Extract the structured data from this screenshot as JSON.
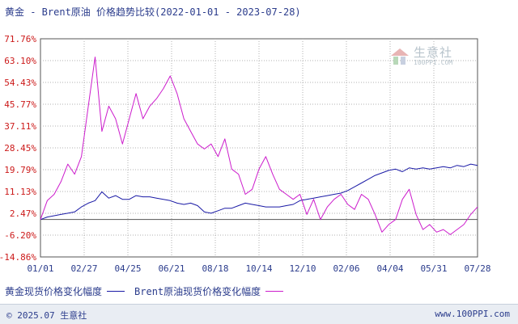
{
  "title": "黄金 - Brent原油 价格趋势比较(2022-01-01 - 2023-07-28)",
  "footer": {
    "copyright": "© 2025.07 生意社",
    "site": "www.100PPI.com"
  },
  "watermark": {
    "name": "生意社",
    "url": "100PPI.COM"
  },
  "colors": {
    "gold": "#1a1aa6",
    "brent": "#cc1ccc",
    "axis": "#333333",
    "grid": "#b0b0b0"
  },
  "chart_data": {
    "type": "line",
    "title": "黄金 - Brent原油 价格趋势比较(2022-01-01 - 2023-07-28)",
    "xlabel": "",
    "ylabel": "",
    "y_tick_labels": [
      "71.76%",
      "63.10%",
      "54.43%",
      "45.77%",
      "37.11%",
      "28.45%",
      "19.79%",
      "11.13%",
      "2.47%",
      "-6.20%",
      "-14.86%"
    ],
    "x_tick_labels": [
      "01/01",
      "02/27",
      "04/25",
      "06/21",
      "08/18",
      "10/14",
      "12/10",
      "02/06",
      "04/04",
      "05/31",
      "07/28"
    ],
    "ylim": [
      -14.86,
      71.76
    ],
    "grid": true,
    "legend_position": "bottom",
    "series": [
      {
        "name": "黄金现货价格变化幅度",
        "color": "#1a1aa6",
        "values": [
          0.0,
          1.0,
          1.5,
          2.0,
          2.5,
          3.0,
          5.0,
          6.5,
          7.5,
          11.0,
          8.5,
          9.5,
          8.0,
          8.0,
          9.5,
          9.0,
          9.0,
          8.5,
          8.0,
          7.5,
          6.5,
          6.0,
          6.5,
          5.5,
          3.0,
          2.5,
          3.5,
          4.5,
          4.5,
          5.5,
          6.5,
          6.0,
          5.5,
          5.0,
          5.0,
          5.0,
          5.5,
          6.0,
          7.5,
          8.0,
          8.5,
          9.0,
          9.5,
          10.0,
          10.5,
          11.5,
          13.0,
          14.5,
          16.0,
          17.5,
          18.5,
          19.5,
          20.0,
          19.0,
          20.5,
          20.0,
          20.5,
          20.0,
          20.5,
          21.0,
          20.5,
          21.5,
          21.0,
          22.0,
          21.5
        ]
      },
      {
        "name": "Brent原油现货价格变化幅度",
        "color": "#cc1ccc",
        "values": [
          0.0,
          7.5,
          10.0,
          15.0,
          22.0,
          18.0,
          25.0,
          45.0,
          64.5,
          35.0,
          45.0,
          40.0,
          30.0,
          40.0,
          50.0,
          40.0,
          45.0,
          48.0,
          52.0,
          57.0,
          50.0,
          40.0,
          35.0,
          30.0,
          28.0,
          30.0,
          25.0,
          32.0,
          20.0,
          18.0,
          10.0,
          12.0,
          20.0,
          25.0,
          18.0,
          12.0,
          10.0,
          8.0,
          10.0,
          2.0,
          8.0,
          0.0,
          5.0,
          8.0,
          10.0,
          6.0,
          4.0,
          10.0,
          8.0,
          2.0,
          -5.0,
          -2.0,
          0.0,
          8.0,
          12.0,
          2.0,
          -4.0,
          -2.0,
          -5.0,
          -4.0,
          -6.0,
          -4.0,
          -2.0,
          2.0,
          5.0
        ]
      }
    ]
  }
}
